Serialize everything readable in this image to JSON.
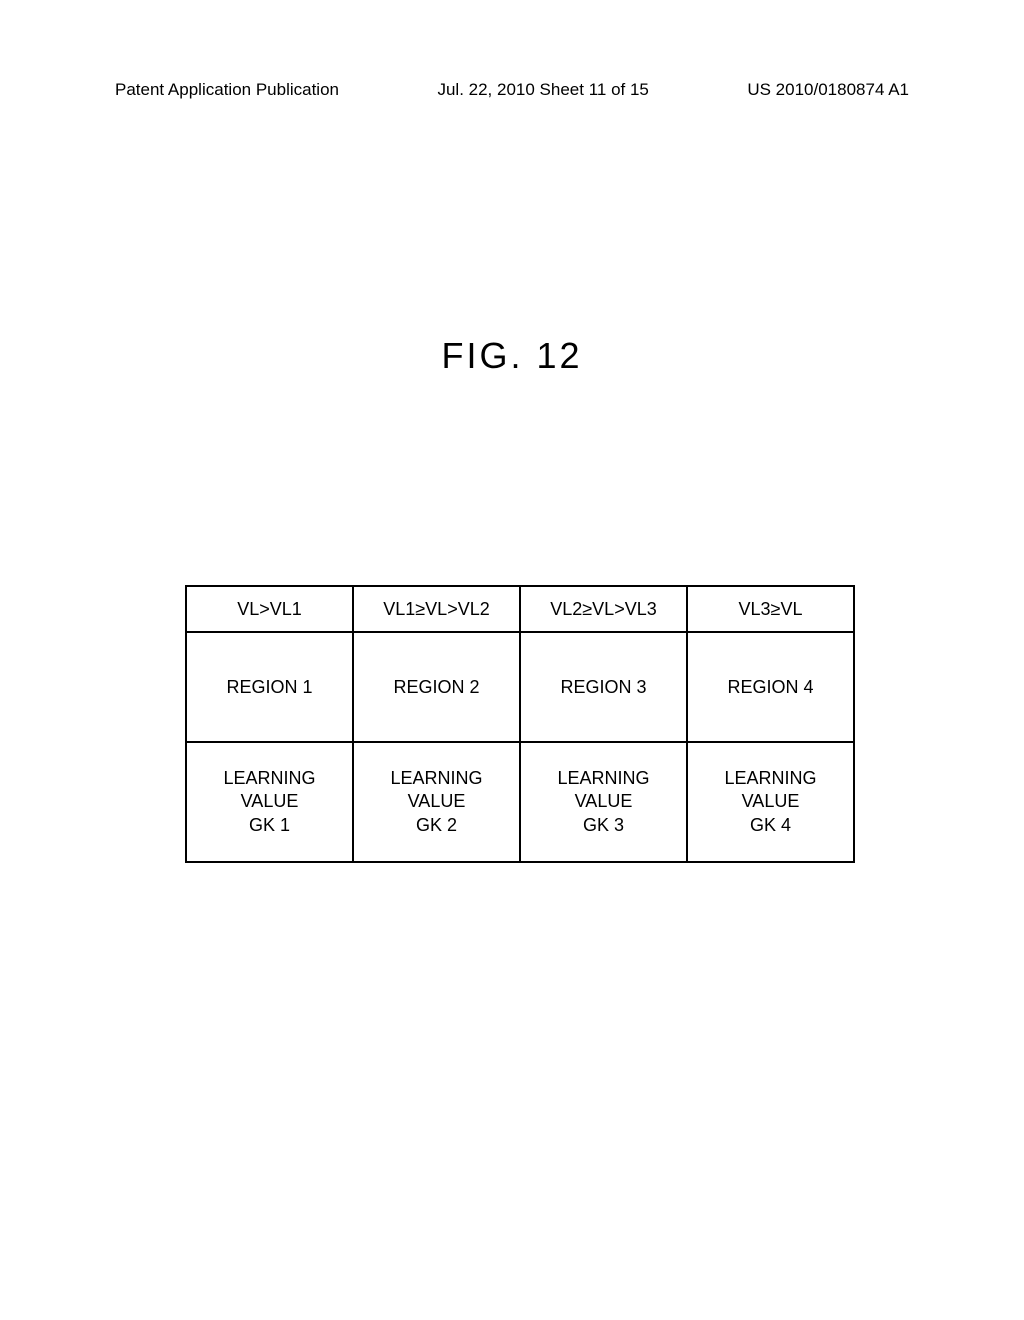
{
  "header": {
    "left": "Patent Application Publication",
    "center": "Jul. 22, 2010  Sheet 11 of 15",
    "right": "US 2010/0180874 A1"
  },
  "figure": {
    "title": "FIG. 12"
  },
  "table": {
    "columns": [
      {
        "condition": "VL>VL1",
        "region": "REGION 1",
        "learning": "LEARNING\nVALUE\nGK 1"
      },
      {
        "condition": "VL1≥VL>VL2",
        "region": "REGION 2",
        "learning": "LEARNING\nVALUE\nGK 2"
      },
      {
        "condition": "VL2≥VL>VL3",
        "region": "REGION 3",
        "learning": "LEARNING\nVALUE\nGK 3"
      },
      {
        "condition": "VL3≥VL",
        "region": "REGION 4",
        "learning": "LEARNING\nVALUE\nGK 4"
      }
    ]
  }
}
